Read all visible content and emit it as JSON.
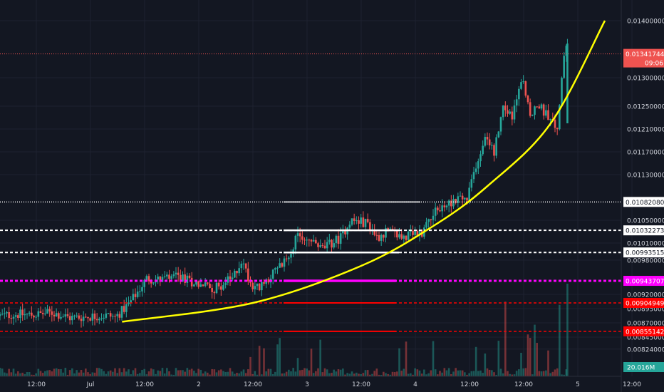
{
  "chart_data": {
    "type": "candlestick",
    "symbol": "",
    "colors": {
      "background": "#131722",
      "grid": "#1e2230",
      "up": "#26a69a",
      "down": "#ef5350",
      "price_line": "#ef5350",
      "trend_curve": "#ffff00",
      "white_level": "#ffffff",
      "magenta_level": "#ff00ff",
      "red_level": "#ff0000",
      "axis_text": "#d1d4dc"
    },
    "y_axis": {
      "min": 0.00824,
      "max": 0.01415,
      "ticks": [
        "0.01400000",
        "0.01300000",
        "0.01250000",
        "0.01210000",
        "0.01170000",
        "0.01130000",
        "0.01050000",
        "0.01010000",
        "0.00980000",
        "0.00920000",
        "0.00895000",
        "0.00870000",
        "0.00845000",
        "0.00824000"
      ],
      "tick_values": [
        0.014,
        0.013,
        0.0125,
        0.0121,
        0.0117,
        0.0113,
        0.0105,
        0.0101,
        0.0098,
        0.0092,
        0.00895,
        0.0087,
        0.00845,
        0.00824
      ]
    },
    "x_axis": {
      "ticks": [
        "12:00",
        "Jul",
        "12:00",
        "2",
        "12:00",
        "3",
        "12:00",
        "4",
        "12:00",
        "12:00",
        "5",
        "12:00"
      ],
      "tick_hours": [
        12,
        24,
        36,
        48,
        60,
        72,
        84,
        96,
        108,
        120,
        132,
        144
      ]
    },
    "current_price": {
      "label": "0.01341744",
      "value": 0.01341744,
      "countdown": "09:06"
    },
    "levels": [
      {
        "label": "0.01082080",
        "value": 0.0108208,
        "style": "dotted",
        "color": "#ffffff"
      },
      {
        "label": "0.01032273",
        "value": 0.01032273,
        "style": "dashed",
        "color": "#ffffff"
      },
      {
        "label": "0.00993515",
        "value": 0.00993515,
        "style": "dashed",
        "color": "#ffffff"
      },
      {
        "label": "0.00943707",
        "value": 0.00943707,
        "style": "dashed",
        "color": "#ff00ff"
      },
      {
        "label": "0.00904949",
        "value": 0.00904949,
        "style": "dashed",
        "color": "#ff0000"
      },
      {
        "label": "0.00855142",
        "value": 0.00855142,
        "style": "dashed",
        "color": "#ff0000"
      }
    ],
    "volume_label": "20.016M",
    "trend_curve": {
      "points_hours": [
        31,
        60,
        84,
        100,
        112,
        126,
        138
      ],
      "points_values": [
        0.00872,
        0.00905,
        0.0097,
        0.0104,
        0.0111,
        0.0122,
        0.014
      ]
    },
    "price_path": {
      "hours": [
        0,
        4,
        8,
        12,
        16,
        20,
        24,
        28,
        30,
        33,
        35,
        37,
        40,
        44,
        48,
        52,
        56,
        58,
        60,
        62,
        64,
        66,
        68,
        70,
        72,
        76,
        80,
        82,
        86,
        88,
        90,
        94,
        98,
        100,
        104,
        106,
        108,
        110,
        112,
        114,
        116,
        118,
        120,
        122,
        124,
        126,
        128,
        128.5,
        129.5
      ],
      "values": [
        0.00888,
        0.00882,
        0.00885,
        0.00884,
        0.00888,
        0.00879,
        0.00881,
        0.00883,
        0.0088,
        0.00903,
        0.00925,
        0.00948,
        0.00945,
        0.0095,
        0.0094,
        0.0093,
        0.00948,
        0.0098,
        0.0094,
        0.0093,
        0.0095,
        0.00965,
        0.0098,
        0.01018,
        0.0102,
        0.01,
        0.0102,
        0.0105,
        0.01045,
        0.0102,
        0.0103,
        0.0102,
        0.0103,
        0.0106,
        0.0108,
        0.0109,
        0.01085,
        0.0115,
        0.0119,
        0.0117,
        0.0125,
        0.0123,
        0.013,
        0.0124,
        0.0125,
        0.0123,
        0.0121,
        0.0125,
        0.0135
      ]
    }
  }
}
